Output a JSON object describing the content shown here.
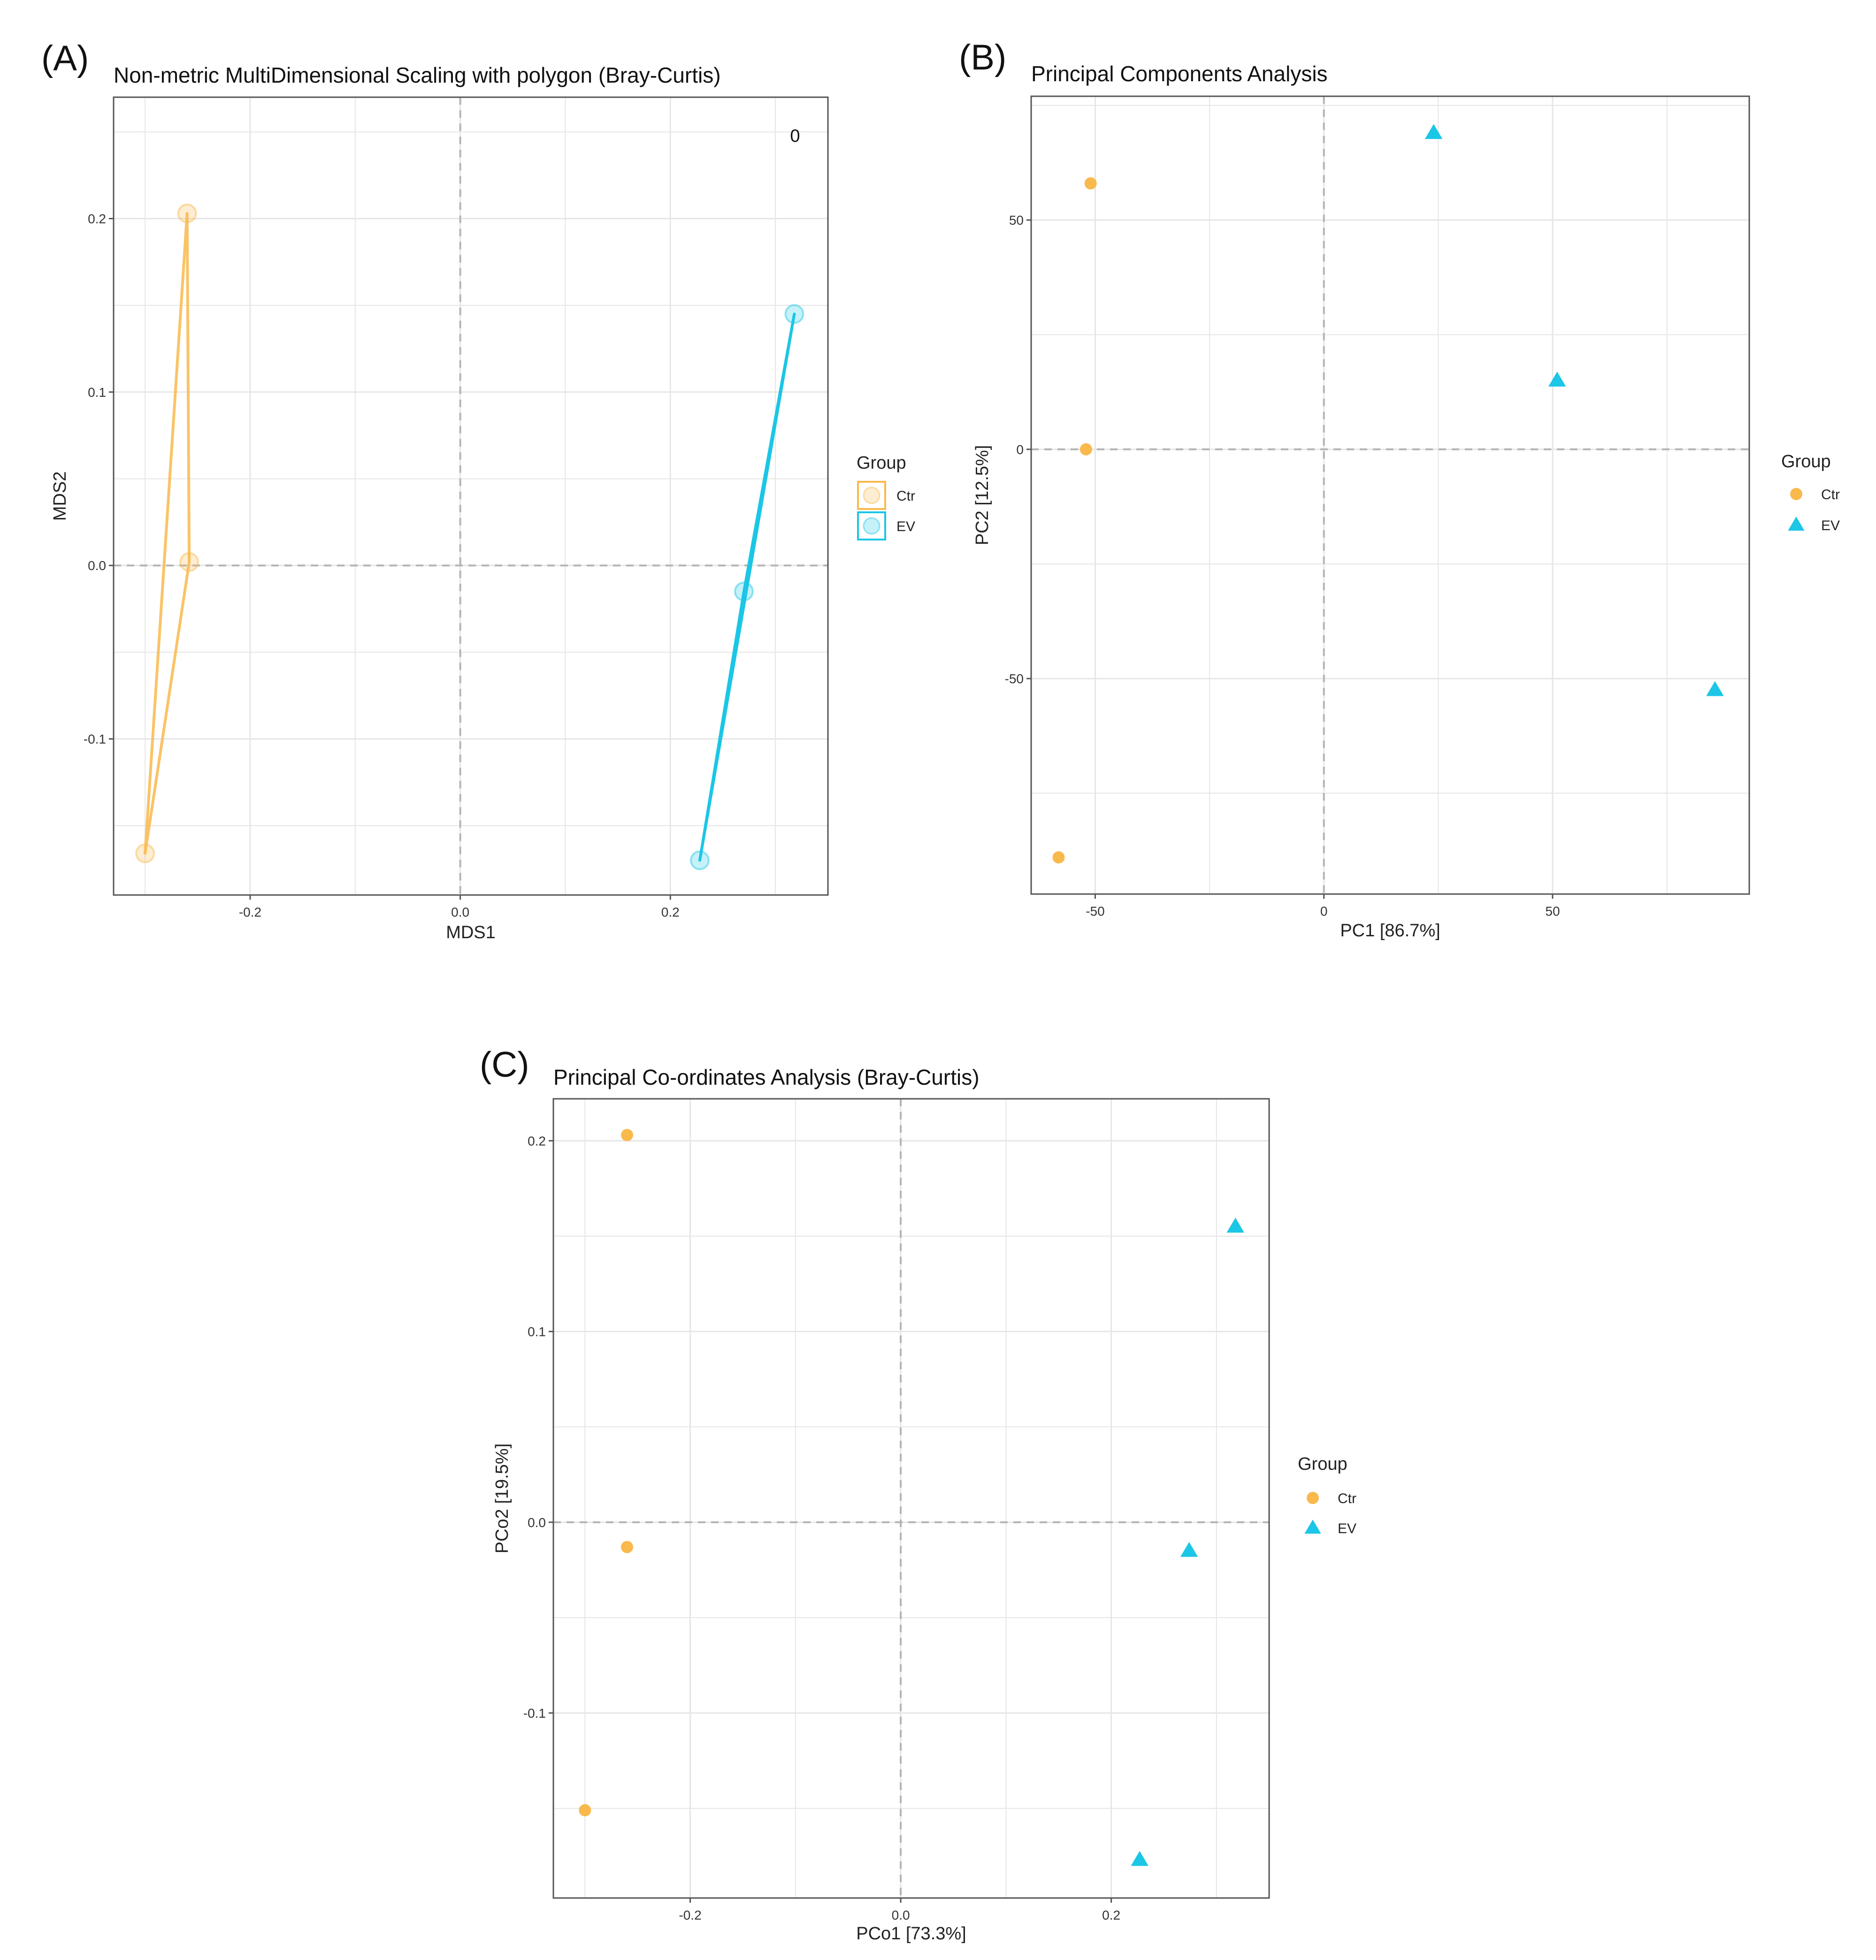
{
  "colors": {
    "ctr": "#F9B94C",
    "ev": "#1BC6E6",
    "grid": "#E6E6E6",
    "zero": "#B4B4B4",
    "frame": "#555555"
  },
  "chart_data": [
    {
      "panel_label": "(A)",
      "type": "scatter",
      "title": "Non-metric MultiDimensional Scaling with polygon (Bray-Curtis)",
      "xlabel": "MDS1",
      "ylabel": "MDS2",
      "xlim": [
        -0.33,
        0.35
      ],
      "ylim": [
        -0.19,
        0.27
      ],
      "xticks": [
        -0.2,
        0.0,
        0.2
      ],
      "xtick_labels": [
        "-0.2",
        "0.0",
        "0.2"
      ],
      "yticks": [
        -0.1,
        0.0,
        0.1,
        0.2
      ],
      "ytick_labels": [
        "-0.1",
        "0.0",
        "0.1",
        "0.2"
      ],
      "polygon": true,
      "faded_points": true,
      "annotation": "0",
      "legend_title": "Group",
      "legend_style": "box",
      "series": [
        {
          "name": "Ctr",
          "shape": "circle",
          "points": [
            [
              -0.26,
              0.203
            ],
            [
              -0.258,
              0.002
            ],
            [
              -0.3,
              -0.166
            ]
          ]
        },
        {
          "name": "EV",
          "shape": "circle",
          "points": [
            [
              0.318,
              0.145
            ],
            [
              0.27,
              -0.015
            ],
            [
              0.228,
              -0.17
            ]
          ]
        }
      ]
    },
    {
      "panel_label": "(B)",
      "type": "scatter",
      "title": "Principal Components Analysis",
      "xlabel": "PC1 [86.7%]",
      "ylabel": "PC2 [12.5%]",
      "xlim": [
        -64,
        93
      ],
      "ylim": [
        -97,
        77
      ],
      "xticks": [
        -50,
        0,
        50
      ],
      "xtick_labels": [
        "-50",
        "0",
        "50"
      ],
      "yticks": [
        -50,
        0,
        50
      ],
      "ytick_labels": [
        "-50",
        "0",
        "50"
      ],
      "legend_title": "Group",
      "legend_style": "plain",
      "series": [
        {
          "name": "Ctr",
          "shape": "circle",
          "points": [
            [
              -51,
              58
            ],
            [
              -52,
              0
            ],
            [
              -58,
              -89
            ]
          ]
        },
        {
          "name": "EV",
          "shape": "triangle",
          "points": [
            [
              24,
              69
            ],
            [
              51,
              15
            ],
            [
              85.5,
              -52.5
            ]
          ]
        }
      ]
    },
    {
      "panel_label": "(C)",
      "type": "scatter",
      "title": "Principal Co-ordinates Analysis (Bray-Curtis)",
      "xlabel": "PCo1 [73.3%]",
      "ylabel": "PCo2 [19.5%]",
      "xlim": [
        -0.33,
        0.35
      ],
      "ylim": [
        -0.197,
        0.222
      ],
      "xticks": [
        -0.2,
        0.0,
        0.2
      ],
      "xtick_labels": [
        "-0.2",
        "0.0",
        "0.2"
      ],
      "yticks": [
        -0.1,
        0.0,
        0.1,
        0.2
      ],
      "ytick_labels": [
        "-0.1",
        "0.0",
        "0.1",
        "0.2"
      ],
      "legend_title": "Group",
      "legend_style": "plain",
      "series": [
        {
          "name": "Ctr",
          "shape": "circle",
          "points": [
            [
              -0.26,
              0.203
            ],
            [
              -0.26,
              -0.013
            ],
            [
              -0.3,
              -0.151
            ]
          ]
        },
        {
          "name": "EV",
          "shape": "triangle",
          "points": [
            [
              0.318,
              0.155
            ],
            [
              0.274,
              -0.015
            ],
            [
              0.227,
              -0.177
            ]
          ]
        }
      ]
    }
  ]
}
